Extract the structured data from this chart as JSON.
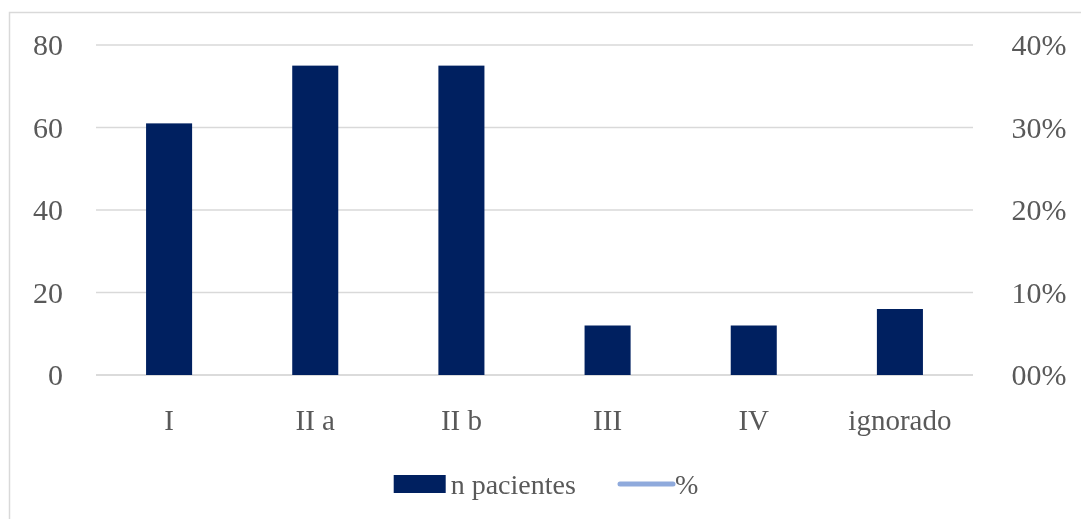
{
  "chart_data": {
    "type": "bar",
    "categories": [
      "I",
      "II a",
      "II b",
      "III",
      "IV",
      "ignorado"
    ],
    "series": [
      {
        "name": "n pacientes",
        "color": "#002060",
        "values": [
          61,
          75,
          75,
          12,
          12,
          16
        ]
      },
      {
        "name": "%",
        "type": "line",
        "color": "#8faadc",
        "values": [
          null,
          null,
          null,
          null,
          null,
          null
        ]
      }
    ],
    "ylim": [
      0,
      80
    ],
    "yticks": [
      0,
      20,
      40,
      60,
      80
    ],
    "y2lim": [
      0,
      40
    ],
    "y2ticks": [
      {
        "value": 0,
        "label": "00%"
      },
      {
        "value": 10,
        "label": "10%"
      },
      {
        "value": 20,
        "label": "20%"
      },
      {
        "value": 30,
        "label": "30%"
      },
      {
        "value": 40,
        "label": "40%"
      }
    ],
    "grid": "y",
    "legend": "bottom"
  }
}
